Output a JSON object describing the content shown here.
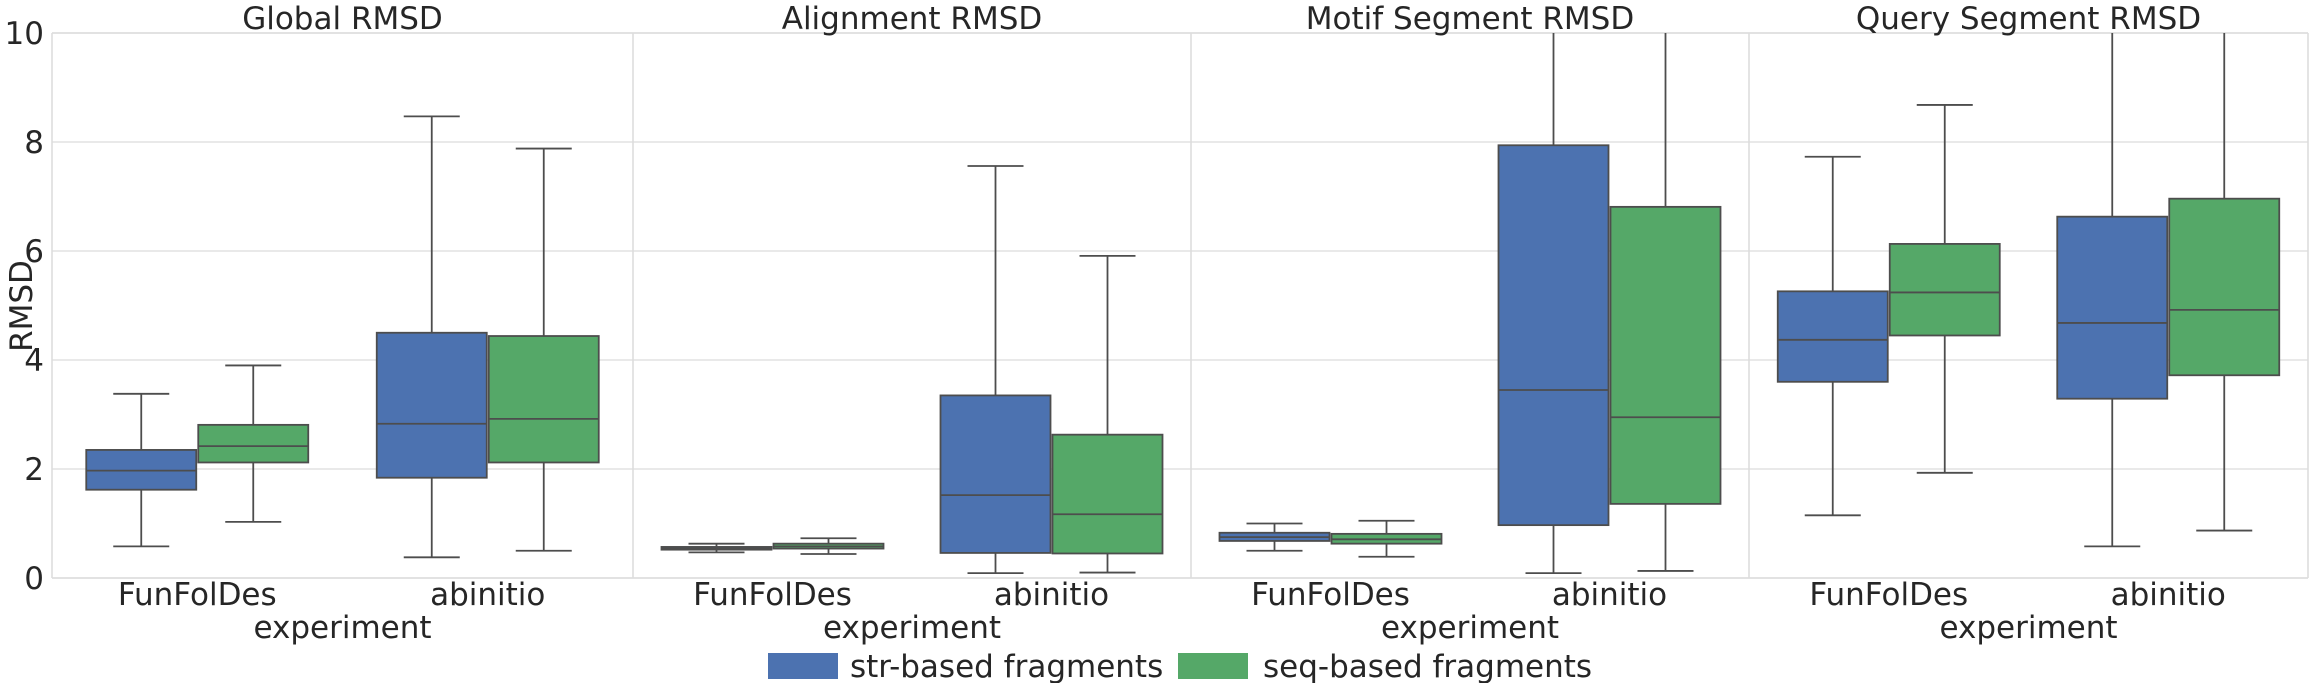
{
  "chart_data": {
    "type": "box",
    "ylabel": "RMSD",
    "ylim": [
      0,
      10
    ],
    "yticks": [
      0,
      2,
      4,
      6,
      8,
      10
    ],
    "xlabel": "experiment",
    "categories": [
      "FunFolDes",
      "abinitio"
    ],
    "grid": true,
    "legend_position": "bottom-center",
    "series": [
      {
        "name": "str-based fragments",
        "color": "#4c72b0"
      },
      {
        "name": "seq-based fragments",
        "color": "#55a868"
      }
    ],
    "panels": [
      {
        "title": "Global RMSD",
        "boxes": [
          {
            "category": "FunFolDes",
            "series": "str-based fragments",
            "whisker_low": 0.58,
            "q1": 1.62,
            "median": 1.97,
            "q3": 2.35,
            "whisker_high": 3.38
          },
          {
            "category": "FunFolDes",
            "series": "seq-based fragments",
            "whisker_low": 1.03,
            "q1": 2.12,
            "median": 2.42,
            "q3": 2.81,
            "whisker_high": 3.9
          },
          {
            "category": "abinitio",
            "series": "str-based fragments",
            "whisker_low": 0.38,
            "q1": 1.84,
            "median": 2.83,
            "q3": 4.5,
            "whisker_high": 8.47
          },
          {
            "category": "abinitio",
            "series": "seq-based fragments",
            "whisker_low": 0.5,
            "q1": 2.12,
            "median": 2.92,
            "q3": 4.44,
            "whisker_high": 7.88
          }
        ]
      },
      {
        "title": "Alignment RMSD",
        "boxes": [
          {
            "category": "FunFolDes",
            "series": "str-based fragments",
            "whisker_low": 0.47,
            "q1": 0.52,
            "median": 0.54,
            "q3": 0.57,
            "whisker_high": 0.63
          },
          {
            "category": "FunFolDes",
            "series": "seq-based fragments",
            "whisker_low": 0.44,
            "q1": 0.54,
            "median": 0.58,
            "q3": 0.63,
            "whisker_high": 0.73
          },
          {
            "category": "abinitio",
            "series": "str-based fragments",
            "whisker_low": 0.09,
            "q1": 0.46,
            "median": 1.52,
            "q3": 3.35,
            "whisker_high": 7.56
          },
          {
            "category": "abinitio",
            "series": "seq-based fragments",
            "whisker_low": 0.1,
            "q1": 0.45,
            "median": 1.17,
            "q3": 2.63,
            "whisker_high": 5.91
          }
        ]
      },
      {
        "title": "Motif Segment RMSD",
        "boxes": [
          {
            "category": "FunFolDes",
            "series": "str-based fragments",
            "whisker_low": 0.5,
            "q1": 0.68,
            "median": 0.75,
            "q3": 0.83,
            "whisker_high": 1.0
          },
          {
            "category": "FunFolDes",
            "series": "seq-based fragments",
            "whisker_low": 0.39,
            "q1": 0.63,
            "median": 0.71,
            "q3": 0.81,
            "whisker_high": 1.05
          },
          {
            "category": "abinitio",
            "series": "str-based fragments",
            "whisker_low": 0.09,
            "q1": 0.97,
            "median": 3.45,
            "q3": 7.94,
            "whisker_high": 10.0
          },
          {
            "category": "abinitio",
            "series": "seq-based fragments",
            "whisker_low": 0.13,
            "q1": 1.36,
            "median": 2.95,
            "q3": 6.81,
            "whisker_high": 10.0
          }
        ]
      },
      {
        "title": "Query Segment RMSD",
        "boxes": [
          {
            "category": "FunFolDes",
            "series": "str-based fragments",
            "whisker_low": 1.15,
            "q1": 3.6,
            "median": 4.37,
            "q3": 5.26,
            "whisker_high": 7.73
          },
          {
            "category": "FunFolDes",
            "series": "seq-based fragments",
            "whisker_low": 1.93,
            "q1": 4.45,
            "median": 5.24,
            "q3": 6.13,
            "whisker_high": 8.68
          },
          {
            "category": "abinitio",
            "series": "str-based fragments",
            "whisker_low": 0.58,
            "q1": 3.29,
            "median": 4.68,
            "q3": 6.63,
            "whisker_high": 10.0
          },
          {
            "category": "abinitio",
            "series": "seq-based fragments",
            "whisker_low": 0.87,
            "q1": 3.72,
            "median": 4.92,
            "q3": 6.96,
            "whisker_high": 10.0
          }
        ]
      }
    ]
  }
}
